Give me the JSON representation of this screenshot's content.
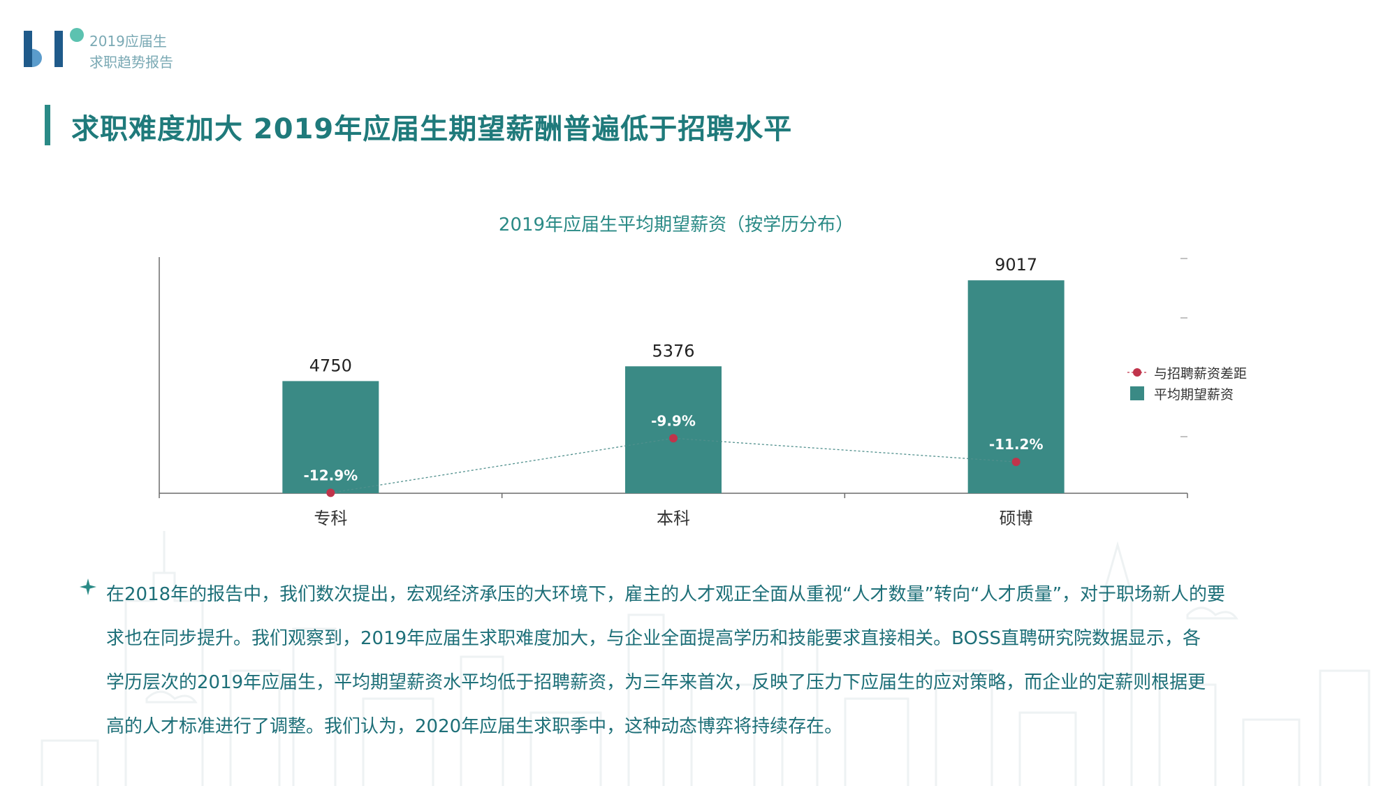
{
  "header": {
    "logo_lines": [
      "2019应届生",
      "求职趋势报告"
    ]
  },
  "title": "求职难度加大 2019年应届生期望薪酬普遍低于招聘水平",
  "colors": {
    "accent": "#2a8a86",
    "bar": "#3a8a85",
    "gap_point": "#c0344b",
    "text": "#1d6f78"
  },
  "chart_data": {
    "type": "bar",
    "title": "2019年应届生平均期望薪资（按学历分布）",
    "categories": [
      "专科",
      "本科",
      "硕博"
    ],
    "series": [
      {
        "name": "平均期望薪资",
        "kind": "bar",
        "values": [
          4750,
          5376,
          9017
        ]
      },
      {
        "name": "与招聘薪资差距",
        "kind": "line",
        "values": [
          -12.9,
          -9.9,
          -11.2
        ],
        "labels": [
          "-12.9%",
          "-9.9%",
          "-11.2%"
        ]
      }
    ],
    "bar_labels": [
      "4750",
      "5376",
      "9017"
    ],
    "legend_position": "right",
    "ylim": [
      0,
      10000
    ]
  },
  "paragraph_lines": [
    "在2018年的报告中，我们数次提出，宏观经济承压的大环境下，雇主的人才观正全面从重视“人才数量”转向“人才质量”，对于职场新人的要",
    "求也在同步提升。我们观察到，2019年应届生求职难度加大，与企业全面提高学历和技能要求直接相关。BOSS直聘研究院数据显示，各",
    "学历层次的2019年应届生，平均期望薪资水平均低于招聘薪资，为三年来首次，反映了压力下应届生的应对策略，而企业的定薪则根据更",
    "高的人才标准进行了调整。我们认为，2020年应届生求职季中，这种动态博弈将持续存在。"
  ]
}
